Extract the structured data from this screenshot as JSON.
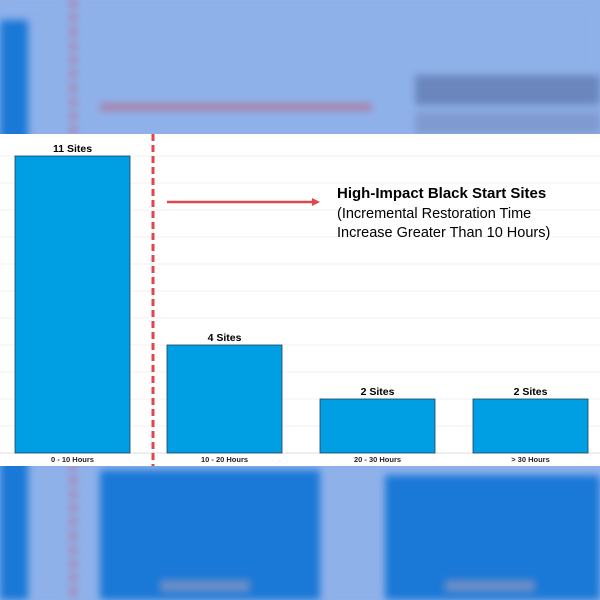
{
  "chart_data": {
    "type": "bar",
    "categories": [
      "0 - 10 Hours",
      "10 - 20 Hours",
      "20 - 30 Hours",
      "> 30 Hours"
    ],
    "values": [
      11,
      4,
      2,
      2
    ],
    "data_labels": [
      "11 Sites",
      "4 Sites",
      "2 Sites",
      "2 Sites"
    ],
    "ylim": [
      0,
      11.5
    ],
    "grid": true,
    "bar_color": "#009fe3",
    "annotation": {
      "title": "High-Impact Black Start Sites",
      "lines": [
        "(Incremental Restoration Time",
        "Increase Greater Than 10 Hours)"
      ],
      "threshold_category_boundary": "0 - 10 Hours | 10 - 20 Hours",
      "line_color": "#e0474c"
    }
  }
}
